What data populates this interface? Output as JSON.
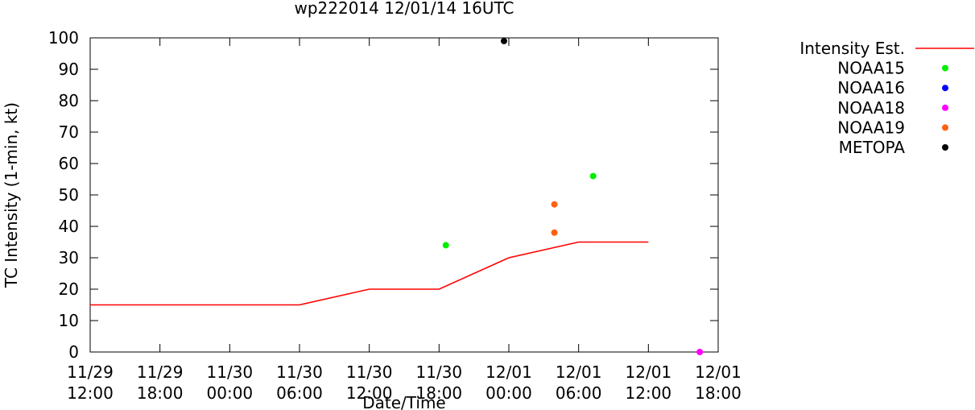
{
  "chart_data": {
    "type": "line",
    "title": "wp222014 12/01/14 16UTC",
    "xlabel": "Date/Time",
    "ylabel": "TC Intensity (1-min, kt)",
    "ylim": [
      0,
      100
    ],
    "yticks": [
      0,
      10,
      20,
      30,
      40,
      50,
      60,
      70,
      80,
      90,
      100
    ],
    "xlim": [
      "2014-11-29 12:00",
      "2014-12-01 18:00"
    ],
    "xticks": [
      {
        "at": "2014-11-29 12:00",
        "date": "11/29",
        "time": "12:00"
      },
      {
        "at": "2014-11-29 18:00",
        "date": "11/29",
        "time": "18:00"
      },
      {
        "at": "2014-11-30 00:00",
        "date": "11/30",
        "time": "00:00"
      },
      {
        "at": "2014-11-30 06:00",
        "date": "11/30",
        "time": "06:00"
      },
      {
        "at": "2014-11-30 12:00",
        "date": "11/30",
        "time": "12:00"
      },
      {
        "at": "2014-11-30 18:00",
        "date": "11/30",
        "time": "18:00"
      },
      {
        "at": "2014-12-01 00:00",
        "date": "12/01",
        "time": "00:00"
      },
      {
        "at": "2014-12-01 06:00",
        "date": "12/01",
        "time": "06:00"
      },
      {
        "at": "2014-12-01 12:00",
        "date": "12/01",
        "time": "12:00"
      },
      {
        "at": "2014-12-01 18:00",
        "date": "12/01",
        "time": "18:00"
      }
    ],
    "legend_position": "right",
    "grid": false,
    "series": [
      {
        "name": "Intensity Est.",
        "kind": "line",
        "color": "#ff0000",
        "points": [
          {
            "x": "2014-11-29 12:00",
            "y": 15
          },
          {
            "x": "2014-11-30 06:00",
            "y": 15
          },
          {
            "x": "2014-11-30 12:00",
            "y": 20
          },
          {
            "x": "2014-11-30 18:00",
            "y": 20
          },
          {
            "x": "2014-12-01 00:00",
            "y": 30
          },
          {
            "x": "2014-12-01 06:00",
            "y": 35
          },
          {
            "x": "2014-12-01 12:00",
            "y": 35
          }
        ]
      },
      {
        "name": "NOAA15",
        "kind": "points",
        "color": "#00ee00",
        "points": [
          {
            "x": "2014-11-30 18:35",
            "y": 34
          },
          {
            "x": "2014-12-01 07:15",
            "y": 56
          }
        ]
      },
      {
        "name": "NOAA16",
        "kind": "points",
        "color": "#0000ff",
        "points": []
      },
      {
        "name": "NOAA18",
        "kind": "points",
        "color": "#ff00ff",
        "points": [
          {
            "x": "2014-12-01 16:25",
            "y": 0
          }
        ]
      },
      {
        "name": "NOAA19",
        "kind": "points",
        "color": "#ff6010",
        "points": [
          {
            "x": "2014-12-01 03:55",
            "y": 47
          },
          {
            "x": "2014-12-01 03:55",
            "y": 38
          }
        ]
      },
      {
        "name": "METOPA",
        "kind": "points",
        "color": "#000000",
        "points": [
          {
            "x": "2014-11-30 23:35",
            "y": 99
          }
        ]
      }
    ]
  }
}
